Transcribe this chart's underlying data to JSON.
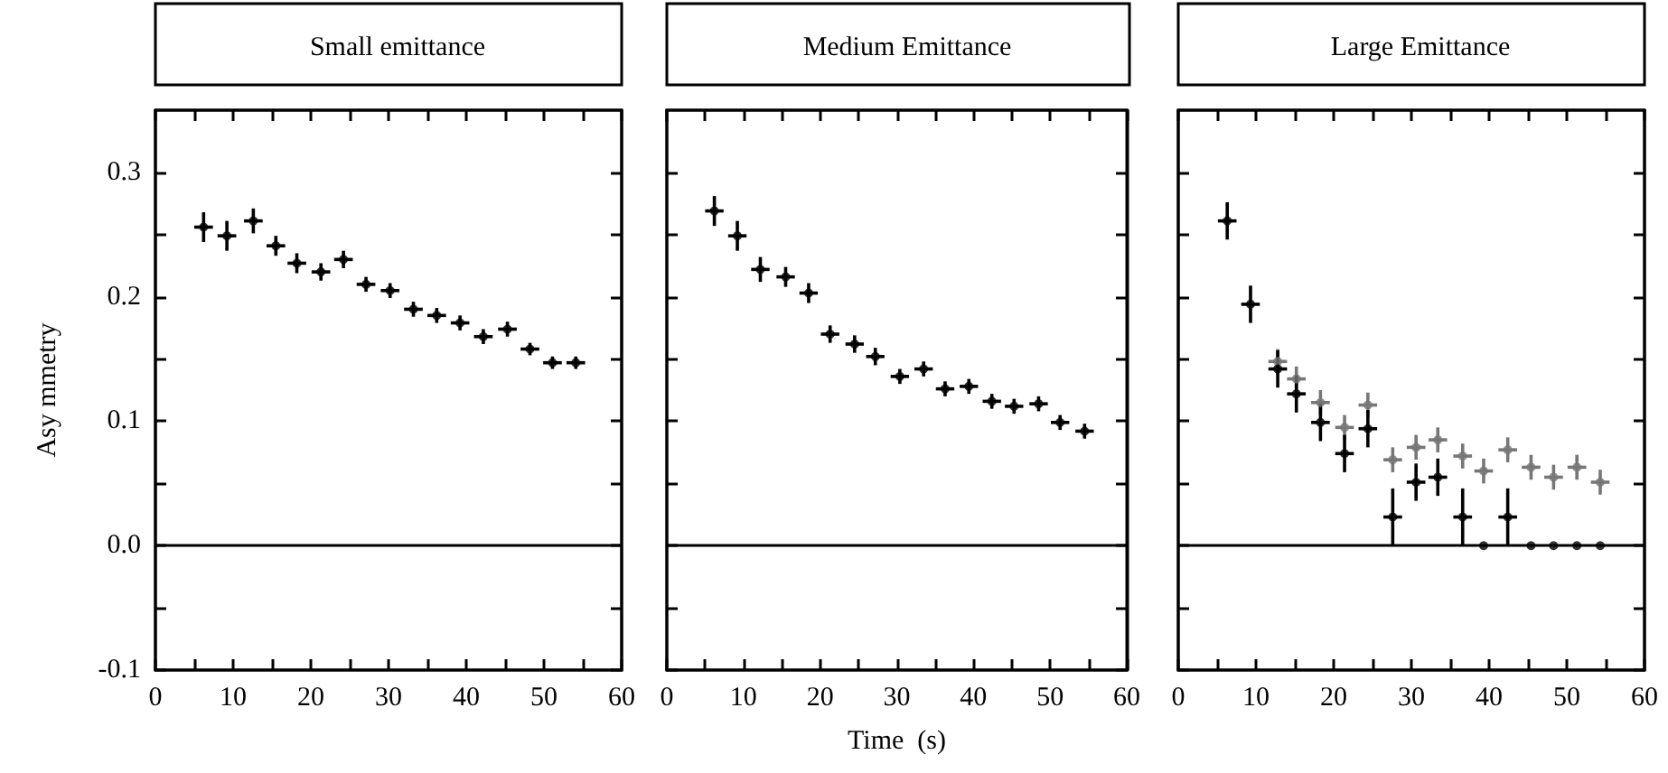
{
  "chart_data": [
    {
      "type": "scatter",
      "title": "Small emittance",
      "ylabel": "Asy mmetry",
      "xlim": [
        0,
        60
      ],
      "xticks": [
        0,
        {
          "value": 5,
          "label": null
        },
        10,
        {
          "value": 15,
          "label": null
        },
        20,
        {
          "value": 25,
          "label": null
        },
        30,
        {
          "value": 35,
          "label": null
        },
        40,
        {
          "value": 45,
          "label": null
        },
        50,
        {
          "value": 55,
          "label": null
        },
        60
      ],
      "ylim": [
        -0.1,
        0.35
      ],
      "yticks": [
        -0.1,
        {
          "value": -0.05,
          "label": null
        },
        {
          "value": 0,
          "label": "0.0"
        },
        {
          "value": 0.05,
          "label": null
        },
        0.1,
        {
          "value": 0.15,
          "label": null
        },
        0.2,
        {
          "value": 0.25,
          "label": null
        },
        0.3
      ],
      "marker": "circle",
      "grid": false,
      "x": [
        6.2,
        9.2,
        12.6,
        15.5,
        18.2,
        21.3,
        24.2,
        27.1,
        30.2,
        33.2,
        36.2,
        39.2,
        42.2,
        45.3,
        48.2,
        51.1,
        54.1
      ],
      "series": [
        {
          "color": "#000000",
          "values": [
            0.256,
            0.249,
            0.261,
            0.241,
            0.227,
            0.22,
            0.23,
            0.21,
            0.205,
            0.19,
            0.185,
            0.179,
            0.168,
            0.174,
            0.158,
            0.147,
            0.147
          ],
          "errors": [
            0.012,
            0.012,
            0.01,
            0.008,
            0.008,
            0.007,
            0.007,
            0.006,
            0.006,
            0.006,
            0.006,
            0.006,
            0.006,
            0.006,
            0.005,
            0.005,
            0.005
          ],
          "xerrors": [
            1.2,
            1.2,
            1.2,
            1.2,
            1.2,
            1.2,
            1.2,
            1.2,
            1.2,
            1.2,
            1.2,
            1.2,
            1.2,
            1.2,
            1.2,
            1.2,
            1.2
          ]
        }
      ],
      "ref_lines": [
        {
          "axis": "y",
          "value": 0,
          "color": "#000000"
        }
      ]
    },
    {
      "type": "scatter",
      "title": "Medium Emittance",
      "xlabel": "Time  (s)",
      "tick_labels": "x",
      "xlim": [
        0,
        60
      ],
      "xticks": [
        0,
        {
          "value": 5,
          "label": null
        },
        10,
        {
          "value": 15,
          "label": null
        },
        20,
        {
          "value": 25,
          "label": null
        },
        30,
        {
          "value": 35,
          "label": null
        },
        40,
        {
          "value": 45,
          "label": null
        },
        50,
        {
          "value": 55,
          "label": null
        },
        60
      ],
      "ylim": [
        -0.1,
        0.35
      ],
      "yticks": [
        -0.1,
        -0.05,
        0,
        0.05,
        0.1,
        0.15,
        0.2,
        0.25,
        0.3
      ],
      "marker": "circle",
      "grid": false,
      "x": [
        6.2,
        9.2,
        12.2,
        15.5,
        18.5,
        21.3,
        24.5,
        27.2,
        30.4,
        33.5,
        36.3,
        39.4,
        42.4,
        45.3,
        48.5,
        51.3,
        54.5
      ],
      "series": [
        {
          "color": "#000000",
          "values": [
            0.269,
            0.249,
            0.222,
            0.216,
            0.203,
            0.17,
            0.162,
            0.152,
            0.136,
            0.142,
            0.126,
            0.128,
            0.116,
            0.112,
            0.114,
            0.099,
            0.092
          ],
          "errors": [
            0.012,
            0.012,
            0.01,
            0.008,
            0.008,
            0.007,
            0.007,
            0.007,
            0.006,
            0.006,
            0.006,
            0.006,
            0.006,
            0.006,
            0.006,
            0.006,
            0.006
          ],
          "xerrors": [
            1.2,
            1.2,
            1.2,
            1.2,
            1.2,
            1.2,
            1.2,
            1.2,
            1.2,
            1.2,
            1.2,
            1.2,
            1.2,
            1.2,
            1.2,
            1.2,
            1.2
          ]
        }
      ],
      "ref_lines": [
        {
          "axis": "y",
          "value": 0,
          "color": "#000000"
        }
      ]
    },
    {
      "type": "scatter",
      "title": "Large Emittance",
      "tick_labels": "x",
      "xlim": [
        0,
        60
      ],
      "xticks": [
        0,
        {
          "value": 5,
          "label": null
        },
        10,
        {
          "value": 15,
          "label": null
        },
        20,
        {
          "value": 25,
          "label": null
        },
        30,
        {
          "value": 35,
          "label": null
        },
        40,
        {
          "value": 45,
          "label": null
        },
        50,
        {
          "value": 55,
          "label": null
        },
        60
      ],
      "ylim": [
        -0.1,
        0.35
      ],
      "yticks": [
        -0.1,
        -0.05,
        0,
        0.05,
        0.1,
        0.15,
        0.2,
        0.25,
        0.3
      ],
      "marker": "circle",
      "grid": false,
      "x": [
        6.3,
        9.3,
        12.8,
        15.2,
        18.3,
        21.4,
        24.4,
        27.6,
        30.6,
        33.4,
        36.6,
        39.3,
        42.4,
        45.4,
        48.3,
        51.3,
        54.3
      ],
      "series": [
        {
          "color": "#777777",
          "values": [
            null,
            null,
            0.148,
            0.134,
            0.115,
            0.095,
            0.113,
            0.069,
            0.079,
            0.085,
            0.072,
            0.06,
            0.077,
            0.063,
            0.055,
            0.063,
            0.051
          ],
          "errors": [
            null,
            null,
            0.01,
            0.01,
            0.01,
            0.01,
            0.01,
            0.01,
            0.01,
            0.01,
            0.01,
            0.01,
            0.01,
            0.01,
            0.01,
            0.01,
            0.01
          ],
          "xerrors": [
            null,
            null,
            1.2,
            1.2,
            1.2,
            1.2,
            1.2,
            1.2,
            1.2,
            1.2,
            1.2,
            1.2,
            1.2,
            1.2,
            1.2,
            1.2,
            1.2
          ]
        },
        {
          "color": "#000000",
          "values": [
            0.261,
            0.194,
            0.142,
            0.122,
            0.099,
            0.074,
            0.094,
            0.023,
            0.051,
            0.055,
            0.023,
            0,
            0.023,
            0,
            0,
            0,
            0
          ],
          "errors": [
            0.015,
            0.015,
            0.015,
            0.015,
            0.015,
            0.015,
            0.015,
            0.023,
            0.015,
            0.015,
            0.023,
            null,
            0.023,
            null,
            null,
            null,
            null
          ],
          "xerrors": [
            1.2,
            1.2,
            1.2,
            1.2,
            1.2,
            1.2,
            1.2,
            1.2,
            1.2,
            1.2,
            1.2,
            null,
            1.2,
            null,
            null,
            null,
            null
          ]
        }
      ],
      "ref_lines": [
        {
          "axis": "y",
          "value": 0,
          "color": "#000000"
        }
      ]
    }
  ]
}
